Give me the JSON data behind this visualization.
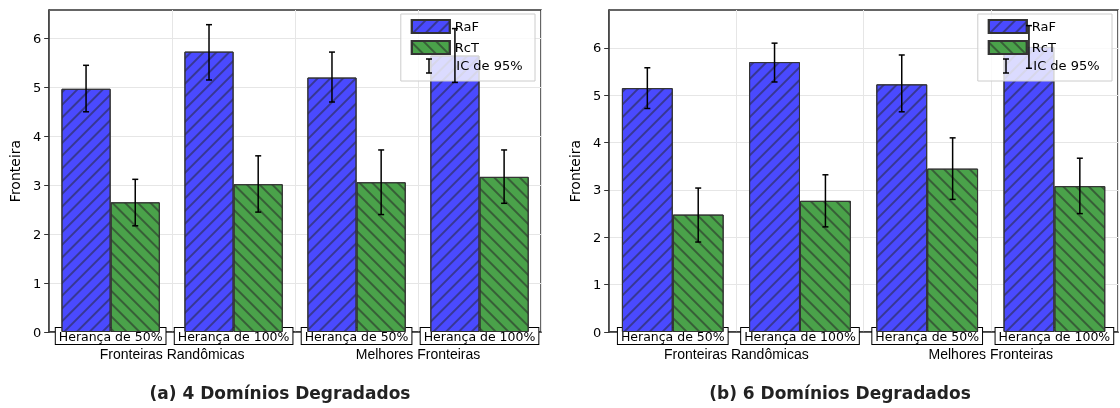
{
  "chart_data": [
    {
      "type": "bar",
      "title": "(a) 4 Domínios Degradados",
      "ylabel": "Fronteira",
      "categories": [
        "Herança de 50%",
        "Herança de 100%",
        "Herança de 50%",
        "Herança de 100%"
      ],
      "series": [
        {
          "name": "RaF",
          "color": "#4a4aff",
          "values": [
            4.97,
            5.73,
            5.2,
            5.65
          ],
          "errors": [
            [
              4.5,
              5.45
            ],
            [
              5.15,
              6.28
            ],
            [
              4.7,
              5.72
            ],
            [
              5.1,
              6.2
            ]
          ]
        },
        {
          "name": "RcT",
          "color": "#4aa24a",
          "values": [
            2.65,
            3.02,
            3.06,
            3.17
          ],
          "errors": [
            [
              2.17,
              3.12
            ],
            [
              2.45,
              3.6
            ],
            [
              2.4,
              3.72
            ],
            [
              2.63,
              3.72
            ]
          ]
        }
      ],
      "ylim": [
        0,
        6.58
      ],
      "yticks": [
        0,
        1,
        2,
        3,
        4,
        5,
        6
      ],
      "grid": true,
      "legend": "top right",
      "annotations": [
        "Fronteiras Randômicas",
        "Melhores Fronteiras",
        "IC de 95%"
      ]
    },
    {
      "type": "bar",
      "title": "(b) 6 Domínios Degradados",
      "ylabel": "Fronteira",
      "categories": [
        "Herança de 50%",
        "Herança de 100%",
        "Herança de 50%",
        "Herança de 100%"
      ],
      "series": [
        {
          "name": "RaF",
          "color": "#4a4aff",
          "values": [
            5.15,
            5.7,
            5.23,
            6.02
          ],
          "errors": [
            [
              4.72,
              5.58
            ],
            [
              5.28,
              6.1
            ],
            [
              4.65,
              5.85
            ],
            [
              5.57,
              6.47
            ]
          ]
        },
        {
          "name": "RcT",
          "color": "#4aa24a",
          "values": [
            2.48,
            2.77,
            3.45,
            3.08
          ],
          "errors": [
            [
              1.9,
              3.04
            ],
            [
              2.22,
              3.32
            ],
            [
              2.8,
              4.1
            ],
            [
              2.5,
              3.67
            ]
          ]
        }
      ],
      "ylim": [
        0,
        6.8
      ],
      "yticks": [
        0,
        1,
        2,
        3,
        4,
        5,
        6
      ],
      "grid": true,
      "legend": "top right",
      "annotations": [
        "Fronteiras Randômicas",
        "Melhores Fronteiras",
        "IC de 95%"
      ]
    }
  ]
}
